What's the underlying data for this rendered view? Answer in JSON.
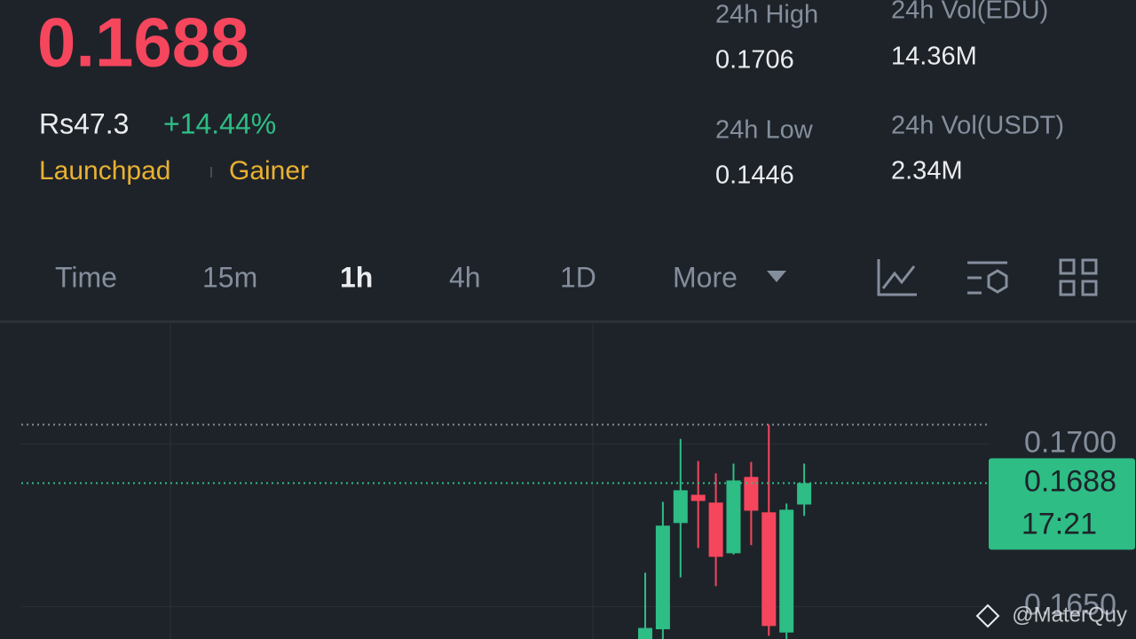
{
  "header": {
    "price": "0.1688",
    "fiat": "Rs47.3",
    "change": "+14.44%",
    "tags": [
      "Launchpad",
      "Gainer"
    ]
  },
  "stats": [
    {
      "label": "24h High",
      "value": "0.1706"
    },
    {
      "label": "24h Vol(EDU)",
      "value": "14.36M"
    },
    {
      "label": "24h Low",
      "value": "0.1446"
    },
    {
      "label": "24h Vol(USDT)",
      "value": "2.34M"
    }
  ],
  "tabs": [
    "Time",
    "15m",
    "1h",
    "4h",
    "1D",
    "More"
  ],
  "watermark": "@MaterQuy",
  "chart_data": {
    "type": "candlestick",
    "categories": [
      null,
      null,
      null,
      null,
      null,
      null,
      null,
      null,
      null,
      null
    ],
    "open": [
      0.164,
      0.1643,
      0.16757,
      0.16844,
      0.1682,
      0.16664,
      0.16899,
      0.1679,
      0.1642,
      0.16814
    ],
    "high": [
      0.16604,
      0.16822,
      0.17016,
      0.16948,
      0.1691,
      0.1694,
      0.16945,
      0.1706,
      0.16817,
      0.1694
    ],
    "low": [
      0.164,
      0.164,
      0.1659,
      0.1668,
      0.16563,
      0.1666,
      0.16689,
      0.1641,
      0.164,
      0.16779
    ],
    "close": [
      0.16434,
      0.16749,
      0.16858,
      0.16825,
      0.16653,
      0.16888,
      0.16795,
      0.1644,
      0.16798,
      0.1688
    ],
    "up_color": "#2ebd85",
    "down_color": "#f6465d",
    "ylim": [
      0.164,
      0.1737
    ],
    "yticks": [
      {
        "value": 0.17,
        "label": "0.1700"
      },
      {
        "value": 0.165,
        "label": "0.1650"
      }
    ],
    "grid": true,
    "high_marker": 0.1706,
    "last": {
      "value": 0.1688,
      "label": "0.1688"
    },
    "countdown": "17:21"
  }
}
